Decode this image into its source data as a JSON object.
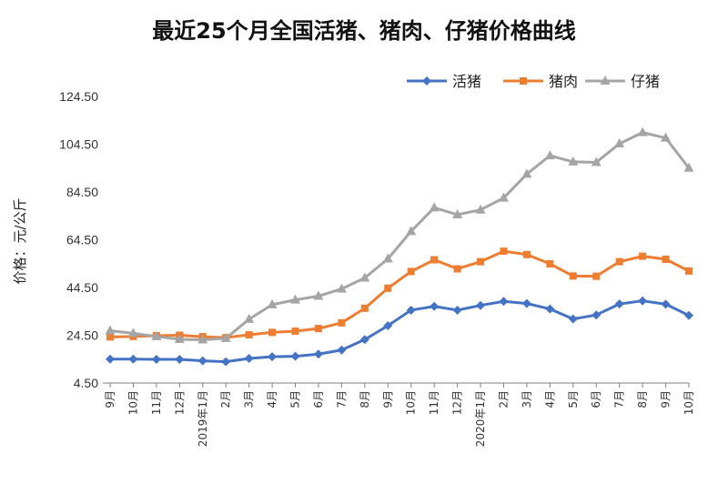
{
  "chart_data": {
    "type": "line",
    "title": "最近25个月全国活猪、猪肉、仔猪价格曲线",
    "ylabel": "价格：元/公斤",
    "xlabel": "",
    "ylim": [
      4.5,
      124.5
    ],
    "yticks": [
      "124.50",
      "104.50",
      "84.50",
      "64.50",
      "44.50",
      "24.50",
      "4.50"
    ],
    "ytick_values": [
      124.5,
      104.5,
      84.5,
      64.5,
      44.5,
      24.5,
      4.5
    ],
    "grid": false,
    "legend_position": "top-right",
    "categories": [
      "9月",
      "10月",
      "11月",
      "12月",
      "2019年1月",
      "2月",
      "3月",
      "4月",
      "5月",
      "6月",
      "7月",
      "8月",
      "9月",
      "10月",
      "11月",
      "12月",
      "2020年1月",
      "2月",
      "3月",
      "4月",
      "5月",
      "6月",
      "7月",
      "8月",
      "9月",
      "10月"
    ],
    "series": [
      {
        "name": "活猪",
        "color": "#4472C4",
        "marker": "diamond",
        "values": [
          14.5,
          14.5,
          14.4,
          14.4,
          13.8,
          13.4,
          14.8,
          15.5,
          15.7,
          16.6,
          18.3,
          22.7,
          28.5,
          35.0,
          36.6,
          35.0,
          37.0,
          38.7,
          37.8,
          35.5,
          31.3,
          33.0,
          37.6,
          38.9,
          37.5,
          32.8
        ]
      },
      {
        "name": "猪肉",
        "color": "#ED7D31",
        "marker": "square",
        "values": [
          23.8,
          24.0,
          24.3,
          24.5,
          23.9,
          23.5,
          24.7,
          25.7,
          26.2,
          27.3,
          29.7,
          35.8,
          44.2,
          51.2,
          56.1,
          52.3,
          55.3,
          59.7,
          58.3,
          54.4,
          49.3,
          49.2,
          55.3,
          57.6,
          56.3,
          51.4
        ]
      },
      {
        "name": "仔猪",
        "color": "#A5A5A5",
        "marker": "triangle",
        "values": [
          26.4,
          25.3,
          24.0,
          22.8,
          22.6,
          23.2,
          31.2,
          37.3,
          39.3,
          40.9,
          43.9,
          48.5,
          56.5,
          68.0,
          77.9,
          75.0,
          77.0,
          82.0,
          92.0,
          99.7,
          97.1,
          96.9,
          104.7,
          109.4,
          107.1,
          94.5
        ]
      }
    ]
  }
}
